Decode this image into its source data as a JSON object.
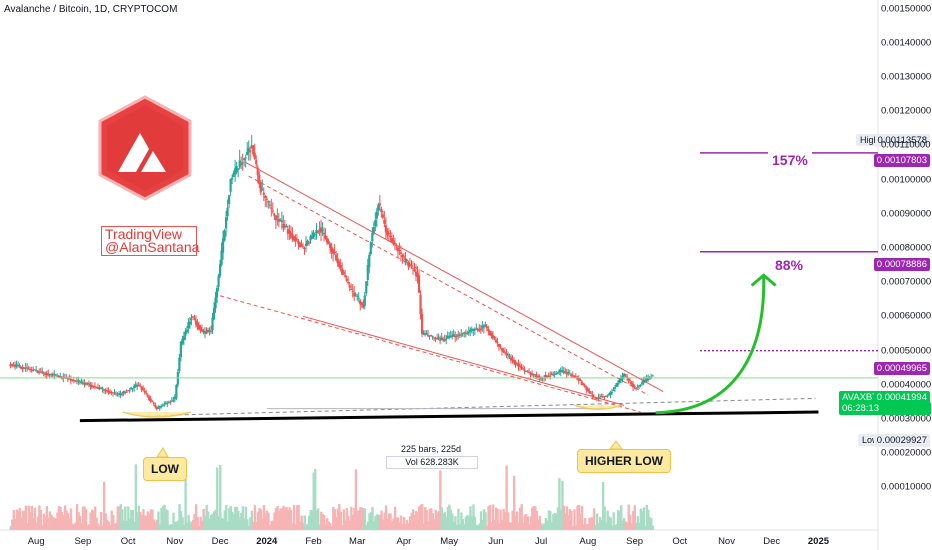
{
  "header": {
    "title": "Avalanche / Bitcoin, 1D, CRYPTOCOM"
  },
  "colors": {
    "up": "#26a69a",
    "down": "#ef5350",
    "accent_purple": "#9c27b0",
    "green_arrow": "#22c02a",
    "callout_bg": "#fde9a0"
  },
  "watermark": {
    "line1": "TradingView",
    "line2": "@AlanSantana"
  },
  "logo": {
    "icon": "avalanche-logo-icon"
  },
  "callouts": {
    "low": "LOW",
    "higher_low": "HIGHER LOW"
  },
  "targets": {
    "t1": "157%",
    "t2": "88%"
  },
  "measure": {
    "bars": "225 bars, 225d",
    "vol": "Vol 628.283K"
  },
  "price_tags": {
    "high_key": "High",
    "high": "0.00113578",
    "t157": "0.00107803",
    "t88": "0.00078886",
    "mid": "0.00049965",
    "symbol": "AVAXBTC",
    "last": "0.00041994",
    "countdown": "06:28:13",
    "low_key": "Low",
    "low": "0.00029927"
  },
  "chart_data": {
    "type": "candlestick",
    "symbol": "AVAXBTC",
    "interval": "1D",
    "exchange": "CRYPTOCOM",
    "y_axis": {
      "ticks": [
        "0.00150000",
        "0.00140000",
        "0.00130000",
        "0.00120000",
        "0.00110000",
        "0.00100000",
        "0.00090000",
        "0.00080000",
        "0.00070000",
        "0.00060000",
        "0.00050000",
        "0.00040000",
        "0.00030000",
        "0.00020000",
        "0.00010000"
      ]
    },
    "x_axis": {
      "ticks": [
        "Aug",
        "Sep",
        "Oct",
        "Nov",
        "Dec",
        "2024",
        "Feb",
        "Mar",
        "Apr",
        "May",
        "Jun",
        "Jul",
        "Aug",
        "Sep",
        "Oct",
        "Nov",
        "Dec",
        "2025"
      ]
    },
    "price_path": [
      [
        "2023-07-15",
        0.00046
      ],
      [
        "2023-08-01",
        0.00044
      ],
      [
        "2023-08-20",
        0.00042
      ],
      [
        "2023-09-05",
        0.0004
      ],
      [
        "2023-09-25",
        0.00037
      ],
      [
        "2023-10-08",
        0.0004
      ],
      [
        "2023-10-20",
        0.00033
      ],
      [
        "2023-11-01",
        0.00036
      ],
      [
        "2023-11-05",
        0.00052
      ],
      [
        "2023-11-12",
        0.0006
      ],
      [
        "2023-11-20",
        0.00055
      ],
      [
        "2023-11-25",
        0.00056
      ],
      [
        "2023-12-01",
        0.00075
      ],
      [
        "2023-12-08",
        0.001
      ],
      [
        "2023-12-15",
        0.00105
      ],
      [
        "2023-12-22",
        0.0011
      ],
      [
        "2023-12-28",
        0.00097
      ],
      [
        "2024-01-05",
        0.0009
      ],
      [
        "2024-01-15",
        0.00085
      ],
      [
        "2024-01-25",
        0.0008
      ],
      [
        "2024-02-05",
        0.00086
      ],
      [
        "2024-02-15",
        0.00078
      ],
      [
        "2024-02-25",
        0.00068
      ],
      [
        "2024-03-05",
        0.00063
      ],
      [
        "2024-03-10",
        0.00082
      ],
      [
        "2024-03-15",
        0.00093
      ],
      [
        "2024-03-20",
        0.00085
      ],
      [
        "2024-03-30",
        0.00078
      ],
      [
        "2024-04-10",
        0.00072
      ],
      [
        "2024-04-13",
        0.00055
      ],
      [
        "2024-04-25",
        0.00053
      ],
      [
        "2024-05-10",
        0.00055
      ],
      [
        "2024-05-25",
        0.00057
      ],
      [
        "2024-06-05",
        0.0005
      ],
      [
        "2024-06-20",
        0.00044
      ],
      [
        "2024-07-01",
        0.00042
      ],
      [
        "2024-07-15",
        0.00044
      ],
      [
        "2024-07-25",
        0.00042
      ],
      [
        "2024-08-05",
        0.00036
      ],
      [
        "2024-08-15",
        0.00037
      ],
      [
        "2024-08-25",
        0.00043
      ],
      [
        "2024-09-01",
        0.00039
      ],
      [
        "2024-09-08",
        0.00041
      ],
      [
        "2024-09-13",
        0.00043
      ]
    ],
    "levels": {
      "high": 0.00113578,
      "target_157": 0.00107803,
      "target_88": 0.00078886,
      "level_mid": 0.00049965,
      "last": 0.00041994,
      "low": 0.00029927
    },
    "annotations": [
      "LOW",
      "HIGHER LOW",
      "157%",
      "88%",
      "225 bars, 225d",
      "Vol 628.283K"
    ]
  }
}
